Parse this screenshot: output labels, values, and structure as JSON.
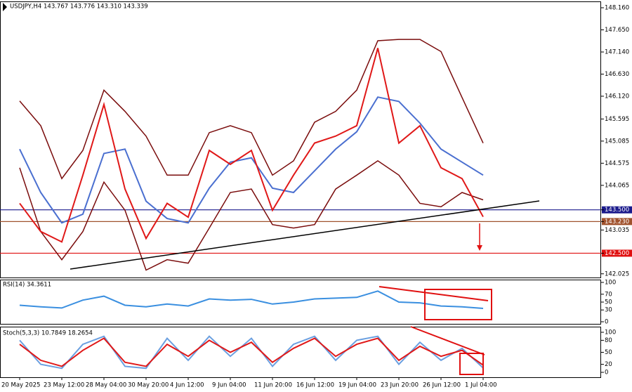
{
  "chart_data": [
    {
      "type": "line",
      "title": "USDJPY,H4 143.767 143.776 143.310 143.339",
      "ylim": [
        141.94,
        148.29
      ],
      "yticks": [
        {
          "value": 148.16,
          "label": "148.160"
        },
        {
          "value": 147.65,
          "label": "147.650"
        },
        {
          "value": 147.14,
          "label": "147.140"
        },
        {
          "value": 146.63,
          "label": "146.630"
        },
        {
          "value": 146.12,
          "label": "146.120"
        },
        {
          "value": 145.595,
          "label": "145.595"
        },
        {
          "value": 145.085,
          "label": "145.085"
        },
        {
          "value": 144.575,
          "label": "144.575"
        },
        {
          "value": 144.065,
          "label": "144.065"
        },
        {
          "value": 143.5,
          "label": "143.500",
          "color": "#1a1a8c"
        },
        {
          "value": 143.23,
          "label": "143.230",
          "color": "#a0522d"
        },
        {
          "value": 143.035,
          "label": "143.035"
        },
        {
          "value": 142.5,
          "label": "142.500",
          "color": "#e01010"
        },
        {
          "value": 142.025,
          "label": "142.025"
        }
      ],
      "series": [
        {
          "color": "#7a0c0c",
          "values": [
            146.01,
            145.44,
            144.22,
            144.87,
            146.26,
            145.77,
            145.2,
            144.3,
            144.3,
            145.28,
            145.44,
            145.28,
            144.3,
            144.63,
            145.52,
            145.77,
            146.26,
            147.4,
            147.43,
            147.43,
            147.15,
            146.09,
            145.04
          ]
        },
        {
          "color": "#7a0c0c",
          "values": [
            144.47,
            143.0,
            142.35,
            143.0,
            144.14,
            143.49,
            142.11,
            142.35,
            142.27,
            143.08,
            143.9,
            143.98,
            143.16,
            143.08,
            143.16,
            143.98,
            144.3,
            144.63,
            144.3,
            143.65,
            143.57,
            143.9,
            143.73
          ]
        },
        {
          "color": "#4a6fd0",
          "values": [
            144.9,
            143.9,
            143.2,
            143.4,
            144.8,
            144.9,
            143.7,
            143.3,
            143.2,
            144.0,
            144.6,
            144.7,
            144.0,
            143.9,
            144.4,
            144.9,
            145.3,
            146.1,
            146.0,
            145.5,
            144.9,
            144.6,
            144.3
          ]
        },
        {
          "color": "#e01818",
          "values": [
            143.65,
            143.0,
            142.76,
            144.3,
            145.93,
            143.98,
            142.84,
            143.65,
            143.33,
            144.87,
            144.55,
            144.87,
            143.49,
            144.3,
            145.04,
            145.2,
            145.44,
            147.23,
            145.04,
            145.44,
            144.47,
            144.22,
            143.34
          ]
        }
      ]
    },
    {
      "type": "line",
      "title": "RSI(14) 34.3611",
      "ylim": [
        0,
        100
      ],
      "yticks": [
        100,
        70,
        50,
        30,
        0
      ],
      "series": [
        {
          "color": "#3a8fe0",
          "values": [
            42,
            38,
            35,
            55,
            65,
            42,
            38,
            45,
            40,
            58,
            55,
            57,
            45,
            50,
            58,
            60,
            62,
            78,
            50,
            48,
            40,
            38,
            34
          ]
        }
      ]
    },
    {
      "type": "line",
      "title": "Stoch(5,3,3) 10.7849 18.2654",
      "ylim": [
        0,
        100
      ],
      "yticks": [
        100,
        80,
        50,
        20,
        0
      ],
      "categories": [
        "20 May 2025",
        null,
        "23 May 12:00",
        null,
        "28 May 04:00",
        null,
        "30 May 20:00",
        null,
        "4 Jun 12:00",
        null,
        "9 Jun 04:00",
        null,
        "11 Jun 20:00",
        null,
        "16 Jun 12:00",
        null,
        "19 Jun 04:00",
        null,
        "23 Jun 20:00",
        null,
        "26 Jun 12:00",
        null,
        "1 Jul 04:00"
      ],
      "series": [
        {
          "color": "#6a9fe0",
          "values": [
            80,
            20,
            10,
            70,
            90,
            15,
            10,
            85,
            30,
            90,
            40,
            85,
            15,
            70,
            90,
            30,
            80,
            90,
            20,
            75,
            30,
            60,
            11
          ]
        },
        {
          "color": "#e01818",
          "values": [
            70,
            30,
            15,
            55,
            85,
            25,
            15,
            70,
            40,
            80,
            50,
            75,
            25,
            60,
            85,
            40,
            70,
            85,
            30,
            65,
            40,
            55,
            18
          ]
        }
      ]
    }
  ]
}
